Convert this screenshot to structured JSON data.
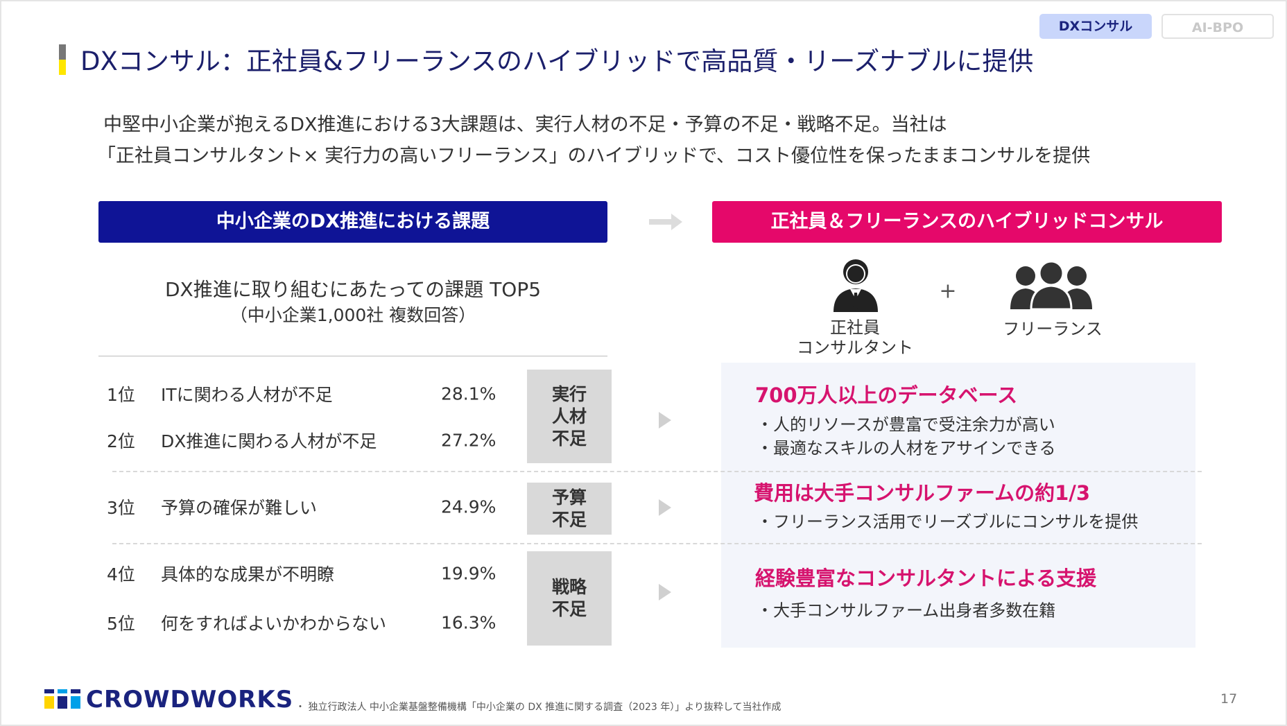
{
  "tabs": [
    "DXコンサル",
    "AI-BPO"
  ],
  "title": "DXコンサル：正社員&フリーランスのハイブリッドで高品質・リーズナブルに提供",
  "intro": [
    "中堅中小企業が抱えるDX推進における3大課題は、実行人材の不足・予算の不足・戦略不足。当社は",
    "「正社員コンサルタント× 実行力の高いフリーランス」のハイブリッドで、コスト優位性を保ったままコンサルを提供"
  ],
  "left": {
    "header": "中小企業のDX推進における課題",
    "survey_title": "DX推進に取り組むにあたっての課題 TOP5",
    "survey_subtitle": "（中小企業1,000社 複数回答）",
    "rows": [
      {
        "rank": "1位",
        "label": "ITに関わる人材が不足",
        "pct": "28.1%"
      },
      {
        "rank": "2位",
        "label": "DX推進に関わる人材が不足",
        "pct": "27.2%"
      },
      {
        "rank": "3位",
        "label": "予算の確保が難しい",
        "pct": "24.9%"
      },
      {
        "rank": "4位",
        "label": "具体的な成果が不明瞭",
        "pct": "19.9%"
      },
      {
        "rank": "5位",
        "label": "何をすればよいかわからない",
        "pct": "16.3%"
      }
    ],
    "groups": [
      [
        "実行",
        "人材",
        "不足"
      ],
      [
        "予算",
        "不足"
      ],
      [
        "戦略",
        "不足"
      ]
    ]
  },
  "right": {
    "header": "正社員＆フリーランスのハイブリッドコンサル",
    "roles": [
      [
        "正社員",
        "コンサルタント"
      ],
      [
        "フリーランス"
      ]
    ],
    "plus": "+",
    "benefits": [
      {
        "heading": "700万人以上のデータベース",
        "bullets": [
          "・人的リソースが豊富で受注余力が高い",
          "・最適なスキルの人材をアサインできる"
        ]
      },
      {
        "heading": "費用は大手コンサルファームの約1/3",
        "bullets": [
          "・フリーランス活用でリーズブルにコンサルを提供"
        ]
      },
      {
        "heading": "経験豊富なコンサルタントによる支援",
        "bullets": [
          "・大手コンサルファーム出身者多数在籍"
        ]
      }
    ]
  },
  "footer": {
    "logo": "CROWDWORKS",
    "note": "・ 独立行政法人 中小企業基盤整備機構「中小企業の DX 推進に関する調査（2023 年）」より抜粋して当社作成",
    "page": "17"
  }
}
